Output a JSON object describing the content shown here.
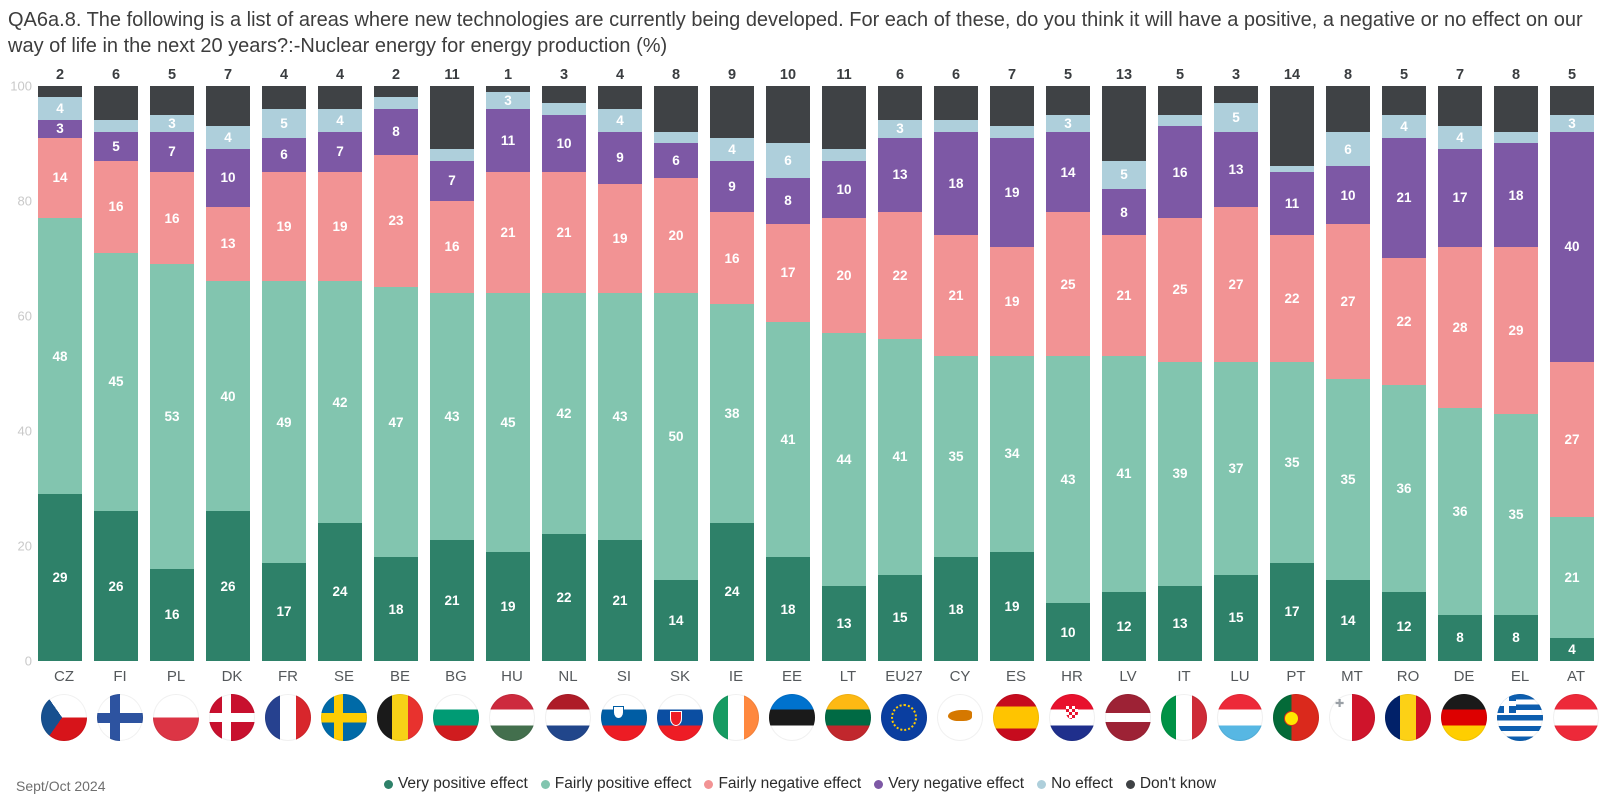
{
  "title": "QA6a.8. The following is a list of areas where new technologies are currently being developed. For each of these, do you think it will have a positive, a negative or no effect on our way of life in the next 20 years?:-Nuclear energy for energy production (%)",
  "footer": {
    "date": "Sept/Oct 2024"
  },
  "legend": {
    "position": "bottom-center",
    "items": [
      "Very positive effect",
      "Fairly positive effect",
      "Fairly negative effect",
      "Very negative effect",
      "No effect",
      "Don't know"
    ]
  },
  "colors": {
    "very_positive": "#2e8169",
    "fairly_positive": "#82c5af",
    "fairly_negative": "#f29394",
    "very_negative": "#7d58a5",
    "no_effect": "#aecfdb",
    "dont_know": "#3f4245"
  },
  "chart_data": {
    "type": "bar",
    "stacked": true,
    "percent": true,
    "title": "Nuclear energy for energy production (%)",
    "ylim": [
      0,
      100
    ],
    "yticks": [
      0,
      20,
      40,
      60,
      80,
      100
    ],
    "grid": false,
    "label_min_value": 3,
    "top_label_series": "Don't know",
    "categories": [
      "CZ",
      "FI",
      "PL",
      "DK",
      "FR",
      "SE",
      "BE",
      "BG",
      "HU",
      "NL",
      "SI",
      "SK",
      "IE",
      "EE",
      "LT",
      "EU27",
      "CY",
      "ES",
      "HR",
      "LV",
      "IT",
      "LU",
      "PT",
      "MT",
      "RO",
      "DE",
      "EL",
      "AT"
    ],
    "series": [
      {
        "name": "Very positive effect",
        "color": "#2e8169",
        "values": [
          29,
          26,
          16,
          26,
          17,
          24,
          18,
          21,
          19,
          22,
          21,
          14,
          24,
          18,
          13,
          15,
          18,
          19,
          10,
          12,
          13,
          15,
          17,
          14,
          12,
          8,
          8,
          4
        ]
      },
      {
        "name": "Fairly positive effect",
        "color": "#82c5af",
        "values": [
          48,
          45,
          53,
          40,
          49,
          42,
          47,
          43,
          45,
          42,
          43,
          50,
          38,
          41,
          44,
          41,
          35,
          34,
          43,
          41,
          39,
          37,
          35,
          35,
          36,
          36,
          35,
          21
        ]
      },
      {
        "name": "Fairly negative effect",
        "color": "#f29394",
        "values": [
          14,
          16,
          16,
          13,
          19,
          19,
          23,
          16,
          21,
          21,
          19,
          20,
          16,
          17,
          20,
          22,
          21,
          19,
          25,
          21,
          25,
          27,
          22,
          27,
          22,
          28,
          29,
          27
        ]
      },
      {
        "name": "Very negative effect",
        "color": "#7d58a5",
        "values": [
          3,
          5,
          7,
          10,
          6,
          7,
          8,
          7,
          11,
          10,
          9,
          6,
          9,
          8,
          10,
          13,
          18,
          19,
          14,
          8,
          16,
          13,
          11,
          10,
          21,
          17,
          18,
          40
        ]
      },
      {
        "name": "No effect",
        "color": "#aecfdb",
        "values": [
          4,
          2,
          3,
          4,
          5,
          4,
          2,
          2,
          3,
          2,
          4,
          2,
          4,
          6,
          2,
          3,
          2,
          2,
          3,
          5,
          2,
          5,
          1,
          6,
          4,
          4,
          2,
          3
        ]
      },
      {
        "name": "Don't know",
        "color": "#3f4245",
        "values": [
          2,
          6,
          5,
          7,
          4,
          4,
          2,
          11,
          1,
          3,
          4,
          8,
          9,
          10,
          11,
          6,
          6,
          7,
          5,
          13,
          5,
          3,
          14,
          8,
          5,
          7,
          8,
          5
        ]
      }
    ]
  }
}
